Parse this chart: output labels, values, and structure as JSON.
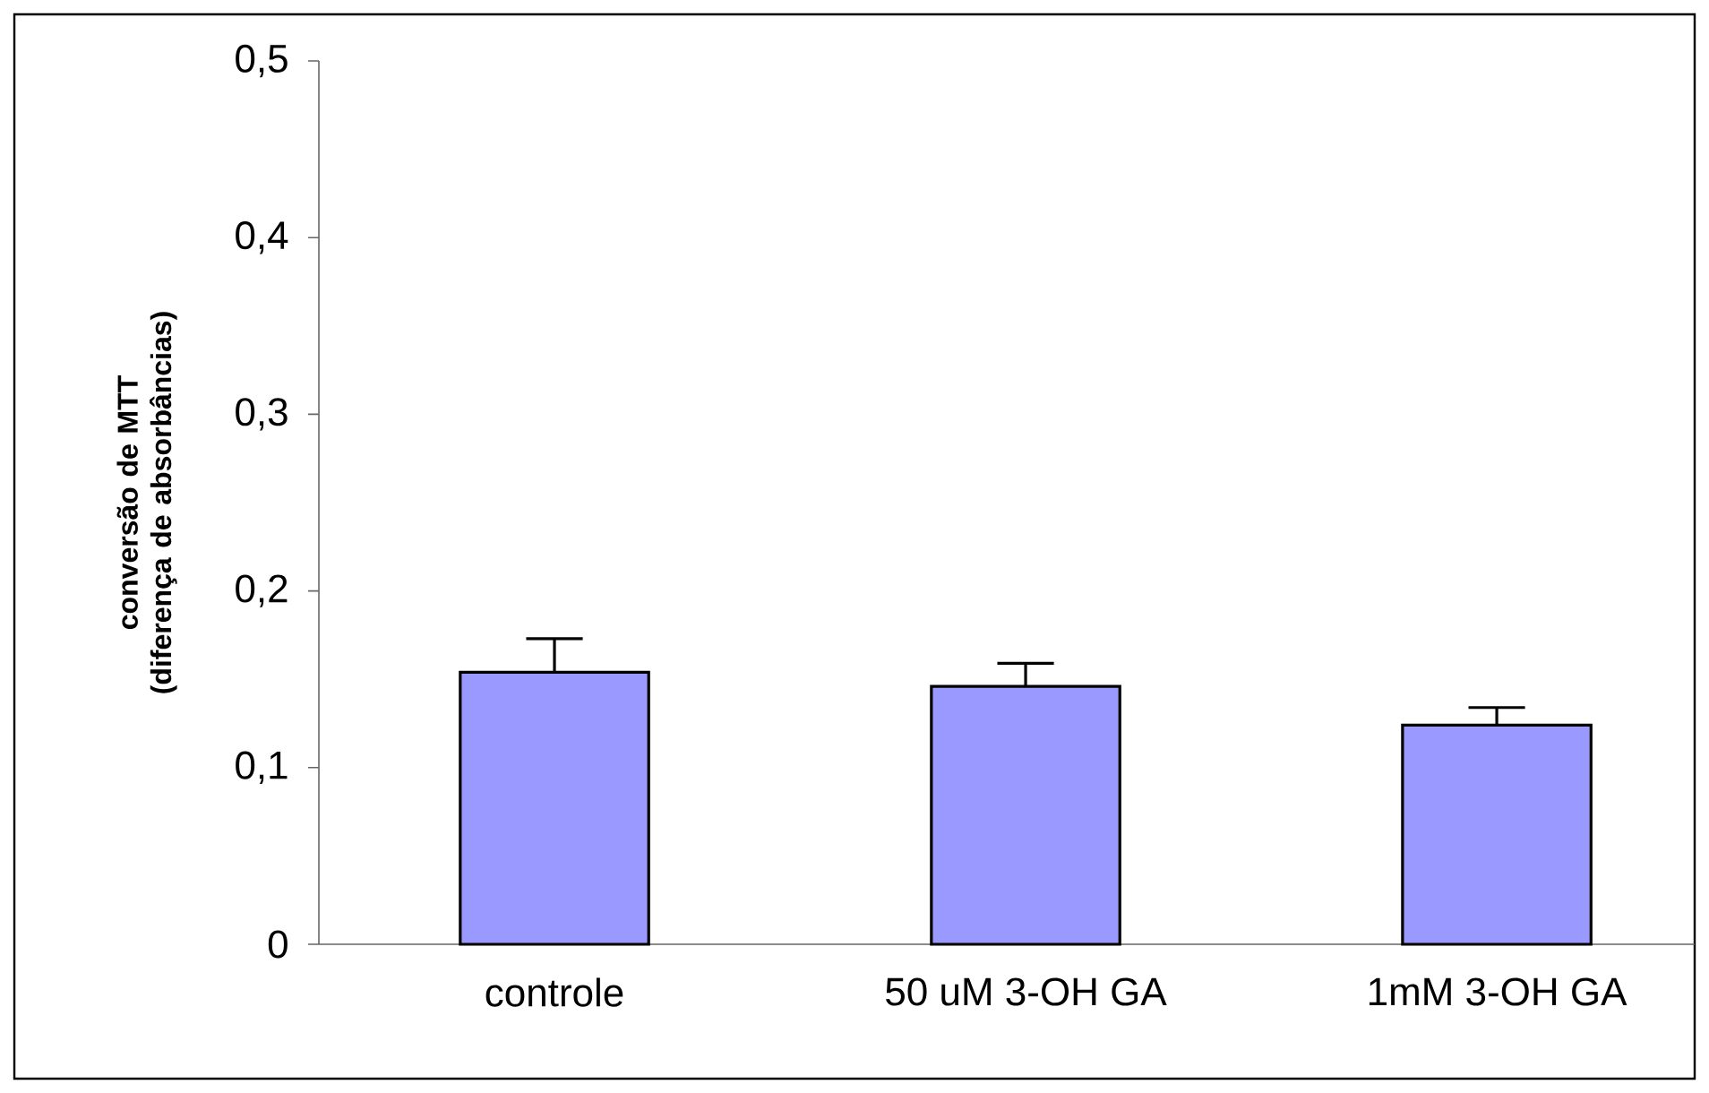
{
  "chart_data": {
    "type": "bar",
    "ylabel": "conversão de MTT\n(diferença de absorbâncias)",
    "categories": [
      "controle",
      "50 uM 3-OH GA",
      "1mM 3-OH GA"
    ],
    "values": [
      0.154,
      0.146,
      0.124
    ],
    "errors": [
      [
        0.154,
        0.173
      ],
      [
        0.146,
        0.159
      ],
      [
        0.124,
        0.134
      ]
    ],
    "color": "#9999ff",
    "ylim": [
      0,
      0.5
    ],
    "yticks": [
      {
        "value": 0,
        "label": "0"
      },
      {
        "value": 0.1,
        "label": "0,1"
      },
      {
        "value": 0.2,
        "label": "0,2"
      },
      {
        "value": 0.3,
        "label": "0,3"
      },
      {
        "value": 0.4,
        "label": "0,4"
      },
      {
        "value": 0.5,
        "label": "0,5"
      }
    ],
    "grid": false
  }
}
